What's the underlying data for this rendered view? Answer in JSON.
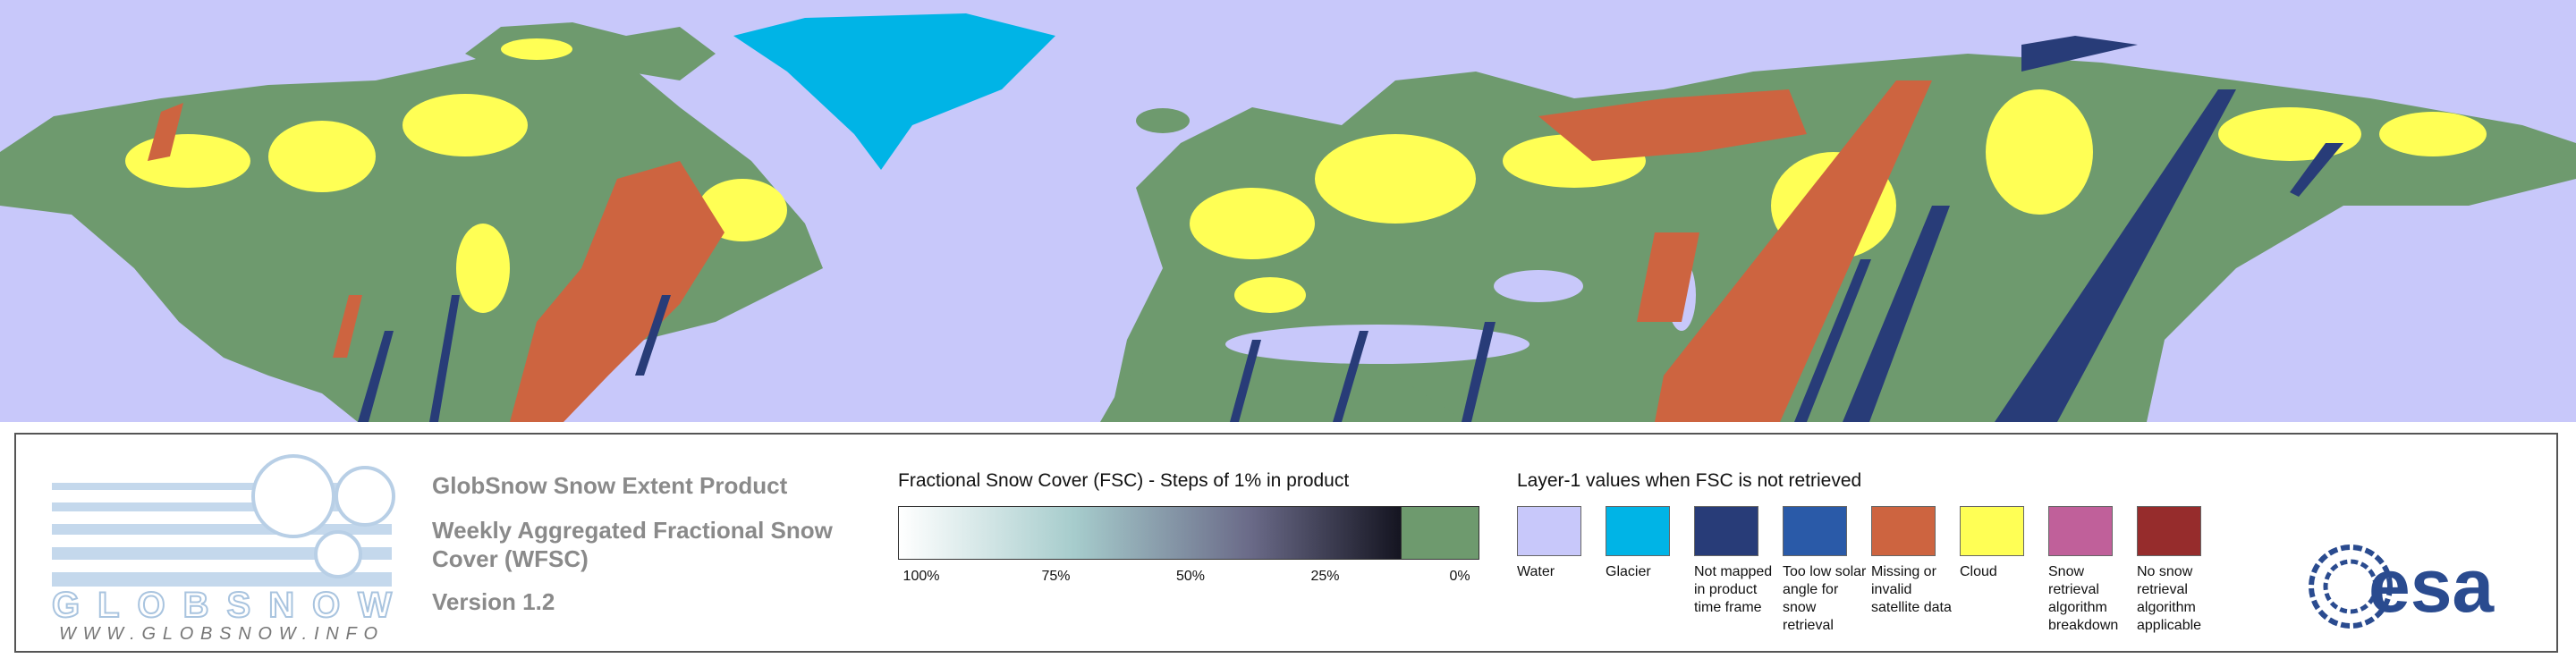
{
  "logo": {
    "name": "GLOBSNOW",
    "url": "WWW.GLOBSNOW.INFO"
  },
  "product": {
    "title": "GlobSnow Snow Extent Product",
    "subtitle_lines": [
      "Weekly Aggregated Fractional Snow",
      "Cover (WFSC)"
    ],
    "version": "Version 1.2"
  },
  "fsc_legend": {
    "title": "Fractional Snow Cover (FSC) - Steps of 1% in product",
    "labels": [
      "100%",
      "75%",
      "50%",
      "25%",
      "0%"
    ]
  },
  "layer1_legend": {
    "title": "Layer-1 values when FSC is not retrieved",
    "items": [
      {
        "label": "Water",
        "color": "#c8c8fa"
      },
      {
        "label": "Glacier",
        "color": "#00b4e6"
      },
      {
        "label": "Not mapped in product time frame",
        "color": "#283c78"
      },
      {
        "label": "Too low solar angle for snow retrieval",
        "color": "#2a5aa8"
      },
      {
        "label": "Missing or invalid satellite data",
        "color": "#cd6440"
      },
      {
        "label": "Cloud",
        "color": "#ffff55"
      },
      {
        "label": "Snow retrieval algorithm breakdown",
        "color": "#c0609a"
      },
      {
        "label": "No snow retrieval algorithm applicable",
        "color": "#962c2c"
      }
    ]
  },
  "agency": "esa"
}
